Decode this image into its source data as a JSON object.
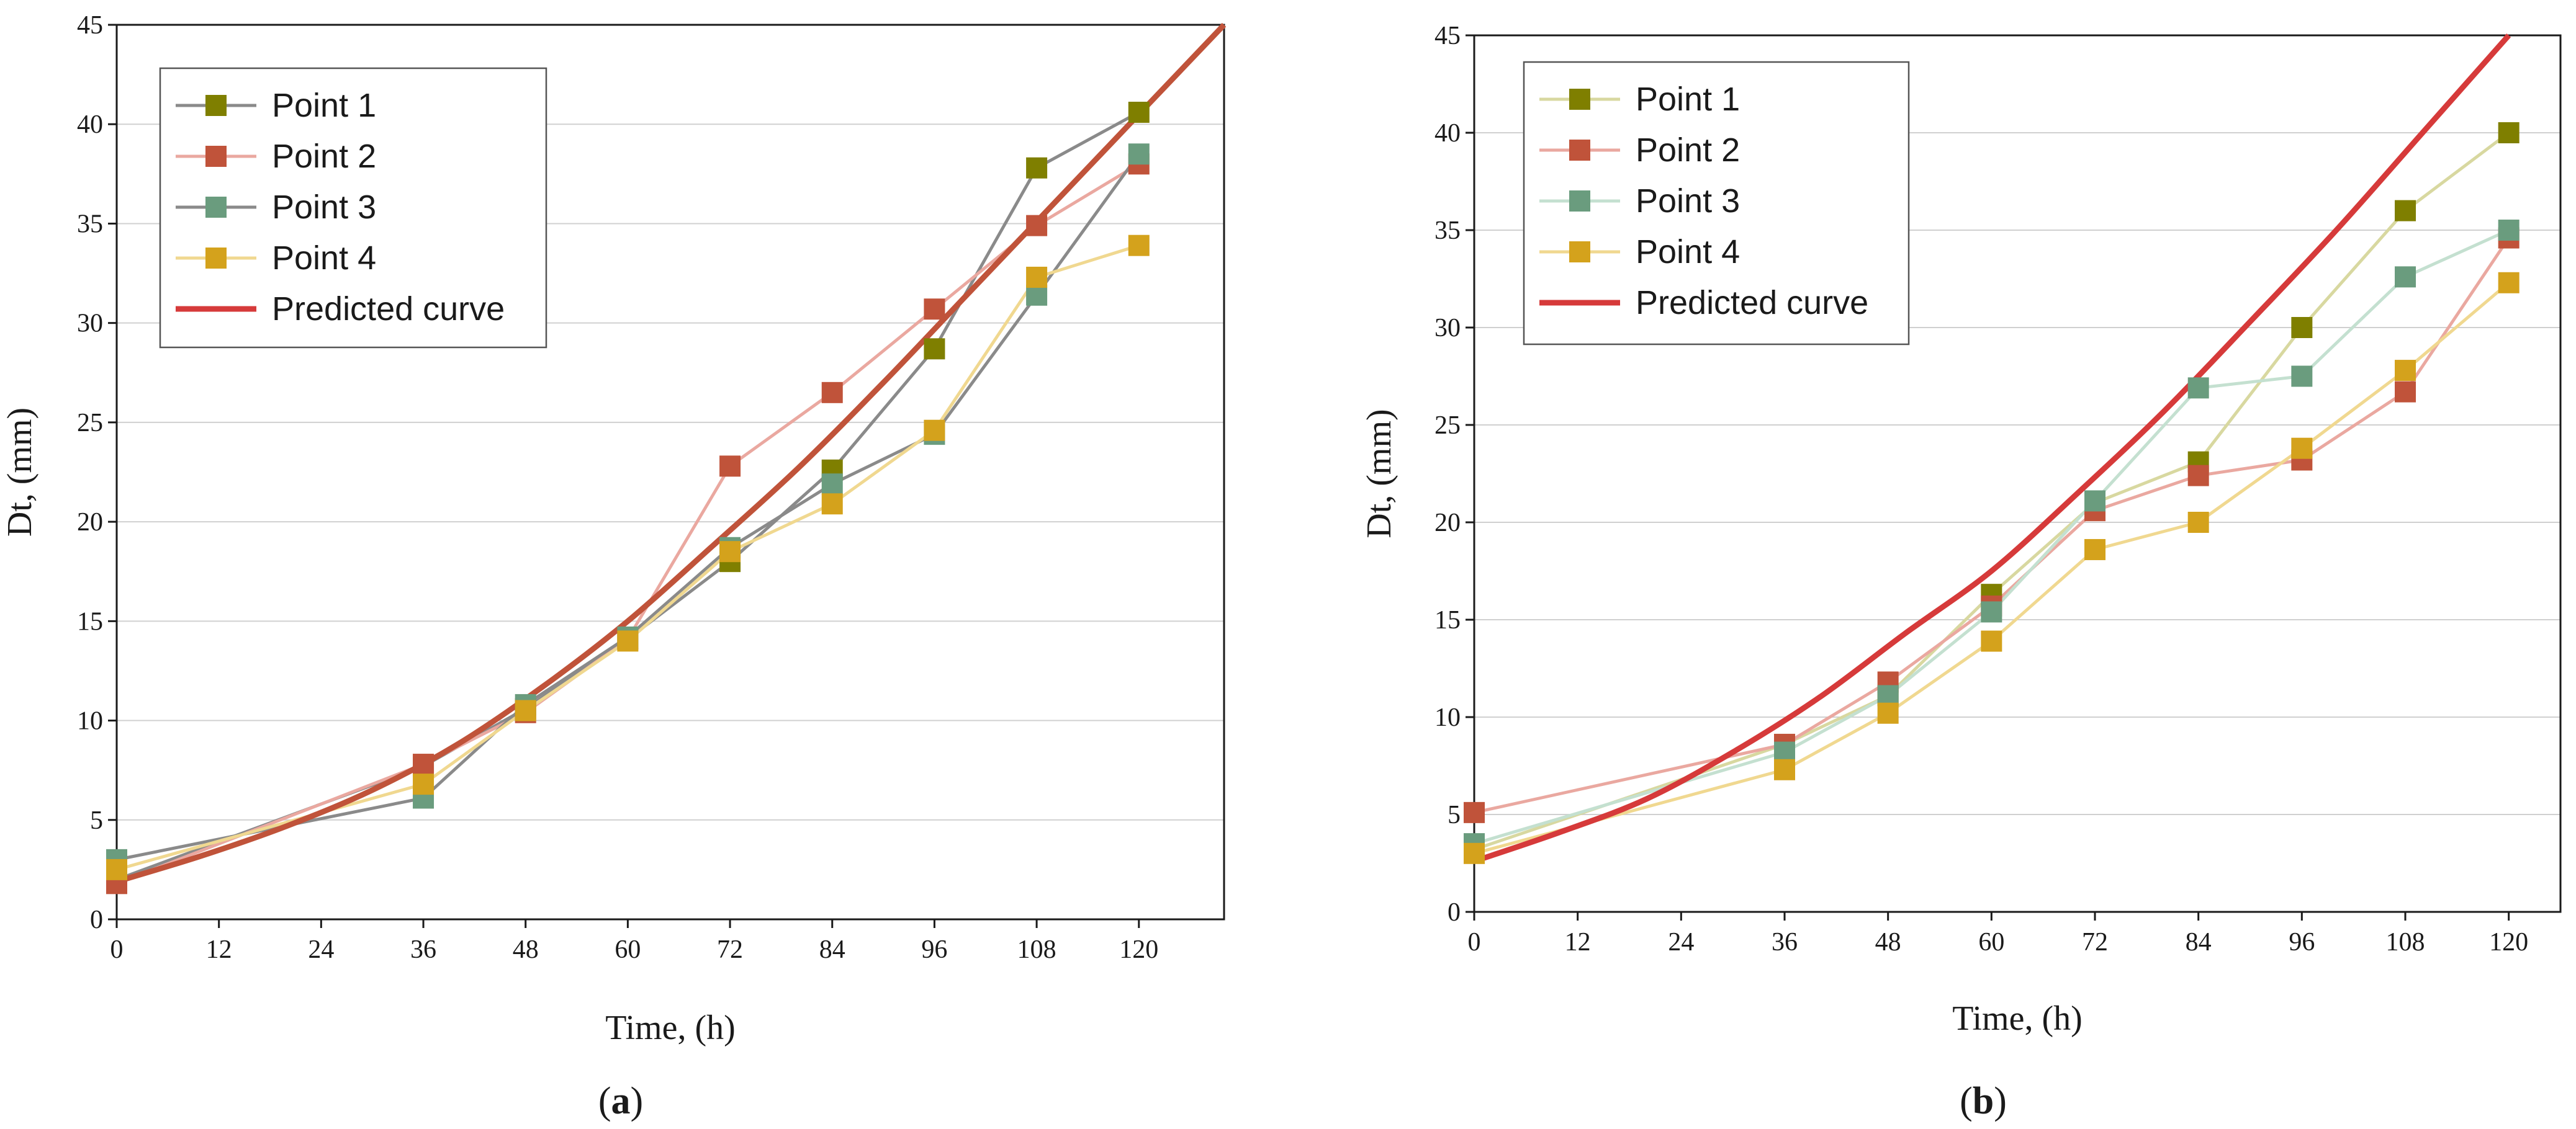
{
  "chart_data": [
    {
      "type": "line",
      "caption_letter": "a",
      "xlabel": "Time, (h)",
      "ylabel": "Dt, (mm)",
      "xlim": [
        0,
        130
      ],
      "ylim": [
        0,
        45
      ],
      "xticks": [
        0,
        12,
        24,
        36,
        48,
        60,
        72,
        84,
        96,
        108,
        120
      ],
      "yticks": [
        0,
        5,
        10,
        15,
        20,
        25,
        30,
        35,
        40,
        45
      ],
      "grid": "horizontal",
      "legend_position": "top-left",
      "series": [
        {
          "name": "Point 1",
          "line_color": "#8a8a8a",
          "marker_color": "#7f7f00",
          "x": [
            0,
            36,
            48,
            60,
            72,
            84,
            96,
            108,
            120
          ],
          "y": [
            2.0,
            7.7,
            10.6,
            14.1,
            18.0,
            22.6,
            28.7,
            37.8,
            40.6
          ]
        },
        {
          "name": "Point 2",
          "line_color": "#eaa8a0",
          "marker_color": "#c0533a",
          "x": [
            0,
            36,
            48,
            60,
            72,
            84,
            96,
            108,
            120
          ],
          "y": [
            1.8,
            7.8,
            10.4,
            14.1,
            22.8,
            26.5,
            30.7,
            34.9,
            38.0
          ]
        },
        {
          "name": "Point 3",
          "line_color": "#8a8a8a",
          "marker_color": "#6a9c7e",
          "x": [
            0,
            36,
            48,
            60,
            72,
            84,
            96,
            108,
            120
          ],
          "y": [
            3.0,
            6.1,
            10.8,
            14.2,
            18.7,
            21.9,
            24.4,
            31.4,
            38.5
          ]
        },
        {
          "name": "Point 4",
          "line_color": "#f0d890",
          "marker_color": "#d4a21c",
          "x": [
            0,
            36,
            48,
            60,
            72,
            84,
            96,
            108,
            120
          ],
          "y": [
            2.5,
            6.8,
            10.5,
            14.0,
            18.5,
            20.9,
            24.6,
            32.3,
            33.9
          ]
        }
      ],
      "predicted": {
        "name": "Predicted curve",
        "legend_color": "#d63a3a",
        "curve_color": "#c0533a",
        "x": [
          0,
          10,
          20,
          30,
          40,
          50,
          60,
          70,
          80,
          90,
          100,
          110,
          120,
          130
        ],
        "y": [
          1.9,
          3.2,
          4.7,
          6.5,
          8.8,
          11.7,
          15.0,
          18.8,
          22.7,
          27.0,
          31.5,
          36.0,
          40.5,
          45.0
        ]
      }
    },
    {
      "type": "line",
      "caption_letter": "b",
      "xlabel": "Time, (h)",
      "ylabel": "Dt, (mm)",
      "xlim": [
        0,
        126
      ],
      "ylim": [
        0,
        45
      ],
      "xticks": [
        0,
        12,
        24,
        36,
        48,
        60,
        72,
        84,
        96,
        108,
        120
      ],
      "yticks": [
        0,
        5,
        10,
        15,
        20,
        25,
        30,
        35,
        40,
        45
      ],
      "grid": "horizontal",
      "legend_position": "top-left",
      "series": [
        {
          "name": "Point 1",
          "line_color": "#d8d8a0",
          "marker_color": "#7f7f00",
          "x": [
            0,
            36,
            48,
            60,
            72,
            84,
            96,
            108,
            120
          ],
          "y": [
            3.2,
            8.6,
            11.1,
            16.3,
            21.0,
            23.1,
            30.0,
            36.0,
            40.0
          ]
        },
        {
          "name": "Point 2",
          "line_color": "#eaa8a0",
          "marker_color": "#c0533a",
          "x": [
            0,
            36,
            48,
            60,
            72,
            84,
            96,
            108,
            120
          ],
          "y": [
            5.1,
            8.6,
            11.8,
            15.7,
            20.6,
            22.4,
            23.2,
            26.7,
            34.6
          ]
        },
        {
          "name": "Point 3",
          "line_color": "#c4e0d0",
          "marker_color": "#6a9c7e",
          "x": [
            0,
            36,
            48,
            60,
            72,
            84,
            96,
            108,
            120
          ],
          "y": [
            3.5,
            8.2,
            11.1,
            15.4,
            21.1,
            26.9,
            27.5,
            32.6,
            35.0
          ]
        },
        {
          "name": "Point 4",
          "line_color": "#f0d890",
          "marker_color": "#d4a21c",
          "x": [
            0,
            36,
            48,
            60,
            72,
            84,
            96,
            108,
            120
          ],
          "y": [
            3.0,
            7.3,
            10.2,
            13.9,
            18.6,
            20.0,
            23.8,
            27.8,
            32.3
          ]
        }
      ],
      "predicted": {
        "name": "Predicted curve",
        "legend_color": "#d63a3a",
        "curve_color": "#d63a3a",
        "x": [
          0,
          10,
          20,
          30,
          40,
          50,
          60,
          70,
          80,
          90,
          100,
          110,
          120
        ],
        "y": [
          2.6,
          4.1,
          5.8,
          8.2,
          11.0,
          14.3,
          17.5,
          21.5,
          25.7,
          30.3,
          35.0,
          40.0,
          45.0
        ]
      }
    }
  ]
}
